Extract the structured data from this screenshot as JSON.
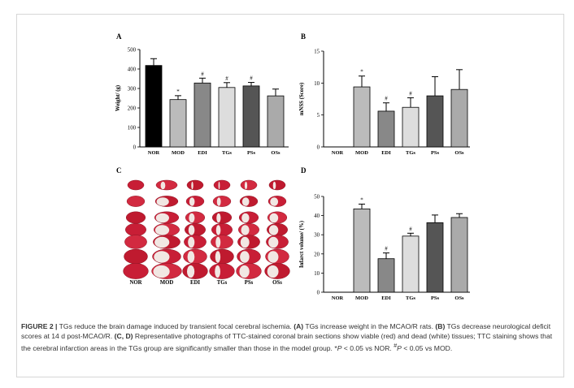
{
  "figure": {
    "panels": {
      "a": "A",
      "b": "B",
      "c": "C",
      "d": "D"
    },
    "brain_labels": [
      "NOR",
      "MOD",
      "EDI",
      "TGs",
      "PSs",
      "OSs"
    ]
  },
  "chart_data": [
    {
      "id": "A",
      "type": "bar",
      "title": "",
      "xlabel": "",
      "ylabel": "Weight/ (g)",
      "ylim": [
        0,
        500
      ],
      "yticks": [
        0,
        100,
        200,
        300,
        400,
        500
      ],
      "categories": [
        "NOR",
        "MOD",
        "EDI",
        "TGs",
        "PSs",
        "OSs"
      ],
      "values": [
        418,
        243,
        328,
        305,
        313,
        262
      ],
      "errors": [
        35,
        20,
        25,
        25,
        18,
        35
      ],
      "annotations": [
        "",
        "*",
        "#",
        "#",
        "#",
        ""
      ],
      "colors": [
        "#000000",
        "#bbbbbb",
        "#888888",
        "#dddddd",
        "#555555",
        "#aaaaaa"
      ]
    },
    {
      "id": "B",
      "type": "bar",
      "title": "",
      "xlabel": "",
      "ylabel": "mNSS (Score)",
      "ylim": [
        0,
        15
      ],
      "yticks": [
        0,
        5,
        10,
        15
      ],
      "categories": [
        "NOR",
        "MOD",
        "EDI",
        "TGs",
        "PSs",
        "OSs"
      ],
      "values": [
        0,
        9.4,
        5.6,
        6.2,
        8.0,
        9.0
      ],
      "errors": [
        0,
        1.7,
        1.3,
        1.5,
        3.0,
        3.1
      ],
      "annotations": [
        "",
        "*",
        "#",
        "#",
        "",
        ""
      ],
      "colors": [
        "#000000",
        "#bbbbbb",
        "#888888",
        "#dddddd",
        "#555555",
        "#aaaaaa"
      ]
    },
    {
      "id": "D",
      "type": "bar",
      "title": "",
      "xlabel": "",
      "ylabel": "Infarct volume/ (%)",
      "ylim": [
        0,
        50
      ],
      "yticks": [
        0,
        10,
        20,
        30,
        40,
        50
      ],
      "categories": [
        "NOR",
        "MOD",
        "EDI",
        "TGs",
        "PSs",
        "OSs"
      ],
      "values": [
        0,
        43.5,
        17.5,
        29.3,
        36.3,
        39.0
      ],
      "errors": [
        0,
        2.5,
        3.0,
        1.5,
        4.0,
        2.0
      ],
      "annotations": [
        "",
        "*",
        "#",
        "#",
        "",
        ""
      ],
      "colors": [
        "#000000",
        "#bbbbbb",
        "#888888",
        "#dddddd",
        "#555555",
        "#aaaaaa"
      ]
    }
  ],
  "caption": {
    "label": "FIGURE 2 |",
    "part1": " TGs reduce the brain damage induced by transient focal cerebral ischemia. ",
    "a": "(A)",
    "part2": " TGs increase weight in the MCAO/R rats. ",
    "b": "(B)",
    "part3": " TGs decrease neurological deficit scores at 14 d post-MCAO/R. ",
    "cd": "(C, D)",
    "part4": " Representative photographs of TTC-stained coronal brain sections show viable (red) and dead (white) tissues; TTC staining shows that the cerebral infarction areas in the TGs group are significantly smaller than those in the model group. *",
    "p1": "P",
    "part5": " < 0.05 vs NOR. ",
    "hash": "#",
    "p2": "P",
    "part6": " < 0.05 vs MOD."
  }
}
